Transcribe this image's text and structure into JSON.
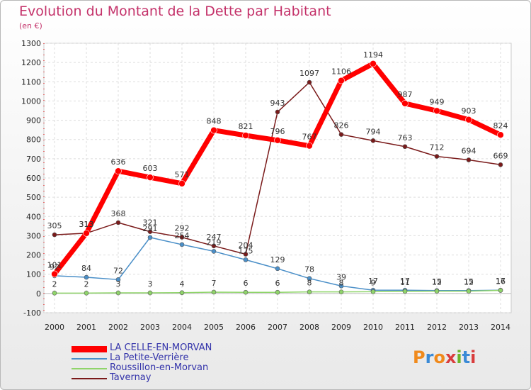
{
  "header": {
    "title": "Evolution du Montant de la Dette par Habitant",
    "subtitle": "(en €)"
  },
  "logo": {
    "text": "Proxiti",
    "colors": [
      "#f08a1c",
      "#3a8ad6",
      "#f08a1c",
      "#d93c3c",
      "#6ab42a",
      "#3a8ad6",
      "#d93c3c"
    ]
  },
  "chart_data": {
    "type": "line",
    "x": [
      "2000",
      "2001",
      "2002",
      "2003",
      "2004",
      "2005",
      "2006",
      "2007",
      "2008",
      "2009",
      "2010",
      "2011",
      "2012",
      "2013",
      "2014"
    ],
    "ylim": [
      -100,
      1300
    ],
    "yticks": [
      -100,
      0,
      100,
      200,
      300,
      400,
      500,
      600,
      700,
      800,
      900,
      1000,
      1100,
      1200,
      1300
    ],
    "grid": true,
    "legend": "bottom-left",
    "series": [
      {
        "name": "Tavernay",
        "color": "#7a1a1a",
        "width": 1.5,
        "values": [
          305,
          313,
          368,
          321,
          292,
          247,
          204,
          943,
          1097,
          826,
          794,
          763,
          712,
          694,
          669
        ],
        "labels": [
          "305",
          "313",
          "368",
          "321",
          "292",
          "247",
          "204",
          "943",
          "1097",
          "826",
          "794",
          "763",
          "712",
          "694",
          "669"
        ]
      },
      {
        "name": "La Petite-Verrière",
        "color": "#4a8fc8",
        "width": 1.5,
        "values": [
          92,
          84,
          72,
          291,
          254,
          219,
          175,
          129,
          78,
          39,
          17,
          17,
          15,
          15,
          17
        ],
        "labels": [
          "92",
          "84",
          "72",
          "291",
          "254",
          "219",
          "175",
          "129",
          "78",
          "39",
          "17",
          "17",
          "15",
          "15",
          "17"
        ]
      },
      {
        "name": "Roussillon-en-Morvan",
        "color": "#8fd46a",
        "width": 1.5,
        "values": [
          2,
          2,
          3,
          3,
          4,
          7,
          6,
          6,
          8,
          8,
          9,
          11,
          12,
          12,
          16
        ],
        "labels": [
          "2",
          "2",
          "3",
          "3",
          "4",
          "7",
          "6",
          "6",
          "8",
          "8",
          "9",
          "11",
          "12",
          "12",
          "16"
        ]
      },
      {
        "name": "LA CELLE-EN-MORVAN",
        "color": "#ff0000",
        "width": 7,
        "values": [
          101,
          313,
          636,
          603,
          571,
          848,
          821,
          796,
          767,
          1106,
          1194,
          987,
          949,
          903,
          824
        ],
        "labels": [
          "101",
          "313",
          "636",
          "603",
          "571",
          "848",
          "821",
          "796",
          "767",
          "1106",
          "1194",
          "987",
          "949",
          "903",
          "824"
        ]
      }
    ]
  }
}
